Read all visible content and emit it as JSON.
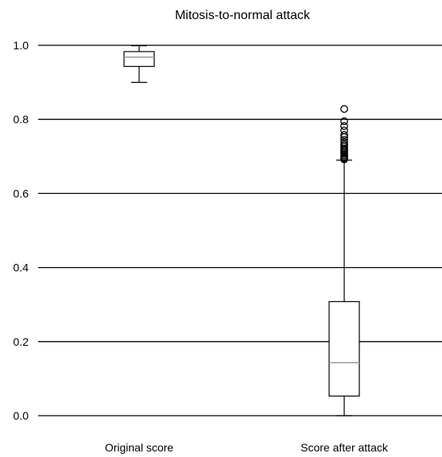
{
  "chart_data": {
    "type": "box",
    "title": "Mitosis-to-normal attack",
    "xlabel": "",
    "ylabel": "",
    "ylim": [
      0,
      1.0
    ],
    "yticks": [
      "0.0",
      "0.2",
      "0.4",
      "0.6",
      "0.8",
      "1.0"
    ],
    "grid": "horizontal",
    "categories": [
      "Original score",
      "Score after attack"
    ],
    "boxes": [
      {
        "category": "Original score",
        "min": 0.9,
        "q1": 0.943,
        "median": 0.968,
        "q3": 0.983,
        "max": 0.999,
        "outliers": []
      },
      {
        "category": "Score after attack",
        "min": 0.0,
        "q1": 0.053,
        "median": 0.143,
        "q3": 0.308,
        "max": 0.69,
        "outliers": [
          0.692,
          0.695,
          0.698,
          0.702,
          0.706,
          0.71,
          0.714,
          0.718,
          0.722,
          0.727,
          0.732,
          0.738,
          0.745,
          0.752,
          0.758,
          0.77,
          0.782,
          0.795,
          0.828
        ]
      }
    ],
    "colors": {
      "median": "#999999",
      "box": "#000000",
      "grid": "#000000"
    }
  }
}
